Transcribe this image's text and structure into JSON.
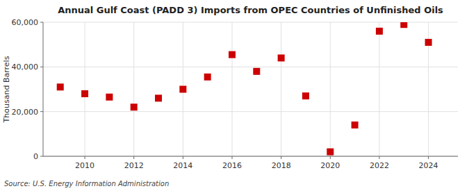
{
  "chart_data": {
    "type": "scatter",
    "title": "Annual Gulf Coast (PADD 3) Imports from OPEC Countries of Unfinished Oils",
    "ylabel": "Thousand Barrels",
    "source": "Source: U.S. Energy Information Administration",
    "x": [
      2009,
      2010,
      2011,
      2012,
      2013,
      2014,
      2015,
      2016,
      2017,
      2018,
      2019,
      2020,
      2021,
      2022,
      2023,
      2024
    ],
    "values": [
      31000,
      28000,
      26500,
      22000,
      26000,
      30000,
      35500,
      45500,
      38000,
      44000,
      27000,
      2000,
      14000,
      56000,
      59000,
      51000
    ],
    "color": "#cc0000",
    "marker": "square",
    "xlim": [
      2008.3,
      2025.2
    ],
    "xticks": [
      2010,
      2012,
      2014,
      2016,
      2018,
      2020,
      2022,
      2024
    ],
    "ylim": [
      0,
      60000
    ],
    "yticks": [
      0,
      {
        "value": 20000,
        "label": "20,000"
      },
      {
        "value": 40000,
        "label": "40,000"
      },
      {
        "value": 60000,
        "label": "60,000"
      }
    ],
    "grid": true
  }
}
